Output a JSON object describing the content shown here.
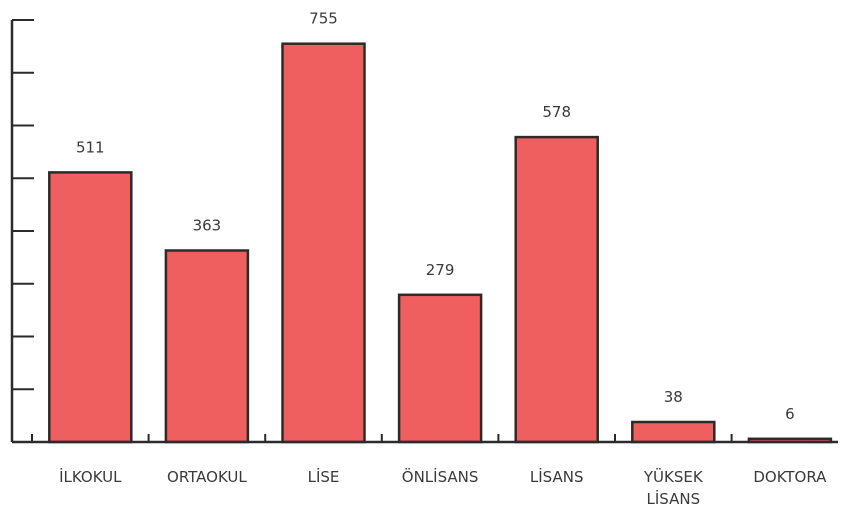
{
  "chart_data": {
    "type": "bar",
    "categories": [
      "İLKOKUL",
      "ORTAOKUL",
      "LİSE",
      "ÖNLİSANS",
      "LİSANS",
      "YÜKSEK LİSANS",
      "DOKTORA"
    ],
    "category_lines": [
      [
        "İLKOKUL"
      ],
      [
        "ORTAOKUL"
      ],
      [
        "LİSE"
      ],
      [
        "ÖNLİSANS"
      ],
      [
        "LİSANS"
      ],
      [
        "YÜKSEK",
        "LİSANS"
      ],
      [
        "DOKTORA"
      ]
    ],
    "values": [
      511,
      363,
      755,
      279,
      578,
      38,
      6
    ],
    "value_labels": [
      "511",
      "363",
      "755",
      "279",
      "578",
      "38",
      "6"
    ],
    "ylim": [
      0,
      800
    ],
    "y_tick_count": 8,
    "grid": false,
    "bar_color": "#f05f5f",
    "title": "",
    "xlabel": "",
    "ylabel": ""
  }
}
